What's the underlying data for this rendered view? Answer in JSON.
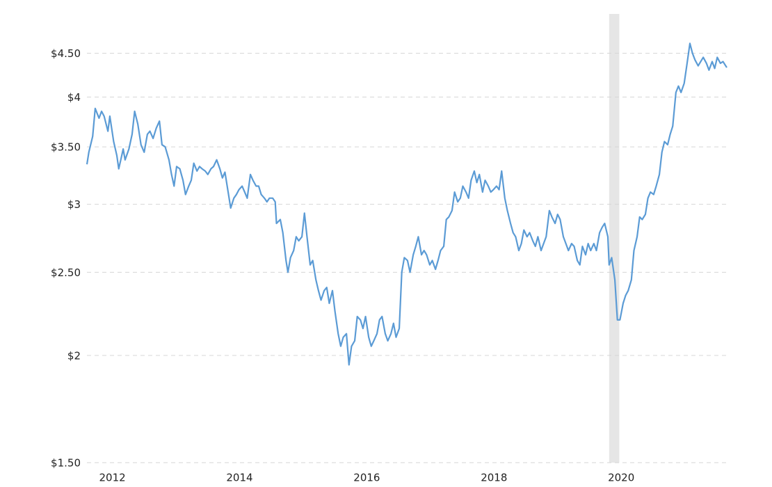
{
  "chart_data": {
    "type": "line",
    "log_scale_y": true,
    "grid": true,
    "xlim": [
      2011.6,
      2021.66
    ],
    "xticks": [
      2012,
      2014,
      2016,
      2018,
      2020
    ],
    "ylim": [
      1.5,
      5.0
    ],
    "yticks": [
      {
        "value": 1.5,
        "label": "$1.50"
      },
      {
        "value": 2,
        "label": "$2"
      },
      {
        "value": 2.5,
        "label": "$2.50"
      },
      {
        "value": 3,
        "label": "$3"
      },
      {
        "value": 3.5,
        "label": "$3.50"
      },
      {
        "value": 4,
        "label": "$4"
      },
      {
        "value": 4.5,
        "label": "$4.50"
      }
    ],
    "shaded_ranges": [
      [
        2019.81,
        2019.97
      ]
    ],
    "shade_color": "#e6e6e6",
    "x": [
      2011.6,
      2011.63,
      2011.69,
      2011.73,
      2011.79,
      2011.83,
      2011.87,
      2011.93,
      2011.96,
      2012.02,
      2012.07,
      2012.1,
      2012.14,
      2012.17,
      2012.2,
      2012.26,
      2012.31,
      2012.35,
      2012.4,
      2012.45,
      2012.5,
      2012.55,
      2012.59,
      2012.64,
      2012.69,
      2012.74,
      2012.78,
      2012.83,
      2012.89,
      2012.93,
      2012.97,
      2013.01,
      2013.06,
      2013.11,
      2013.15,
      2013.2,
      2013.24,
      2013.28,
      2013.33,
      2013.37,
      2013.41,
      2013.46,
      2013.5,
      2013.55,
      2013.59,
      2013.64,
      2013.69,
      2013.73,
      2013.77,
      2013.82,
      2013.86,
      2013.91,
      2013.95,
      2013.99,
      2014.04,
      2014.08,
      2014.12,
      2014.17,
      2014.21,
      2014.26,
      2014.3,
      2014.34,
      2014.39,
      2014.43,
      2014.47,
      2014.52,
      2014.56,
      2014.58,
      2014.64,
      2014.68,
      2014.73,
      2014.76,
      2014.8,
      2014.85,
      2014.89,
      2014.93,
      2014.98,
      2015.02,
      2015.06,
      2015.11,
      2015.15,
      2015.2,
      2015.24,
      2015.28,
      2015.33,
      2015.37,
      2015.41,
      2015.46,
      2015.5,
      2015.55,
      2015.59,
      2015.63,
      2015.68,
      2015.72,
      2015.76,
      2015.81,
      2015.85,
      2015.9,
      2015.94,
      2015.98,
      2016.03,
      2016.07,
      2016.11,
      2016.16,
      2016.2,
      2016.24,
      2016.29,
      2016.33,
      2016.38,
      2016.42,
      2016.46,
      2016.51,
      2016.55,
      2016.59,
      2016.64,
      2016.68,
      2016.73,
      2016.77,
      2016.81,
      2016.86,
      2016.9,
      2016.94,
      2016.99,
      2017.03,
      2017.08,
      2017.12,
      2017.16,
      2017.21,
      2017.25,
      2017.29,
      2017.34,
      2017.38,
      2017.43,
      2017.47,
      2017.51,
      2017.56,
      2017.6,
      2017.64,
      2017.69,
      2017.73,
      2017.77,
      2017.82,
      2017.86,
      2017.91,
      2017.95,
      2017.99,
      2018.04,
      2018.08,
      2018.12,
      2018.17,
      2018.21,
      2018.26,
      2018.3,
      2018.34,
      2018.39,
      2018.43,
      2018.47,
      2018.52,
      2018.56,
      2018.61,
      2018.65,
      2018.69,
      2018.74,
      2018.78,
      2018.82,
      2018.87,
      2018.91,
      2018.96,
      2019.0,
      2019.04,
      2019.09,
      2019.13,
      2019.17,
      2019.22,
      2019.26,
      2019.31,
      2019.35,
      2019.39,
      2019.44,
      2019.48,
      2019.52,
      2019.57,
      2019.61,
      2019.66,
      2019.7,
      2019.74,
      2019.79,
      2019.81,
      2019.85,
      2019.9,
      2019.94,
      2019.98,
      2020.03,
      2020.07,
      2020.11,
      2020.16,
      2020.2,
      2020.25,
      2020.29,
      2020.33,
      2020.38,
      2020.42,
      2020.46,
      2020.51,
      2020.55,
      2020.6,
      2020.64,
      2020.68,
      2020.73,
      2020.77,
      2020.81,
      2020.86,
      2020.9,
      2020.94,
      2020.99,
      2021.03,
      2021.08,
      2021.12,
      2021.16,
      2021.21,
      2021.25,
      2021.29,
      2021.34,
      2021.38,
      2021.43,
      2021.47,
      2021.51,
      2021.56,
      2021.6,
      2021.66
    ],
    "series": [
      {
        "color": "#5b9bd5",
        "values": [
          3.34,
          3.45,
          3.6,
          3.88,
          3.78,
          3.85,
          3.8,
          3.65,
          3.8,
          3.55,
          3.42,
          3.3,
          3.4,
          3.48,
          3.38,
          3.48,
          3.62,
          3.85,
          3.72,
          3.52,
          3.45,
          3.62,
          3.65,
          3.58,
          3.68,
          3.75,
          3.52,
          3.5,
          3.38,
          3.25,
          3.15,
          3.32,
          3.3,
          3.2,
          3.08,
          3.15,
          3.2,
          3.35,
          3.28,
          3.32,
          3.3,
          3.28,
          3.25,
          3.3,
          3.32,
          3.38,
          3.3,
          3.22,
          3.27,
          3.1,
          2.97,
          3.05,
          3.08,
          3.12,
          3.15,
          3.1,
          3.05,
          3.25,
          3.2,
          3.15,
          3.15,
          3.08,
          3.05,
          3.02,
          3.05,
          3.05,
          3.02,
          2.85,
          2.88,
          2.78,
          2.58,
          2.5,
          2.6,
          2.65,
          2.75,
          2.72,
          2.75,
          2.93,
          2.75,
          2.55,
          2.58,
          2.45,
          2.38,
          2.32,
          2.38,
          2.4,
          2.3,
          2.38,
          2.25,
          2.12,
          2.05,
          2.1,
          2.12,
          1.95,
          2.05,
          2.08,
          2.22,
          2.2,
          2.15,
          2.22,
          2.1,
          2.05,
          2.08,
          2.12,
          2.2,
          2.22,
          2.12,
          2.08,
          2.12,
          2.18,
          2.1,
          2.15,
          2.5,
          2.6,
          2.58,
          2.5,
          2.62,
          2.68,
          2.75,
          2.62,
          2.65,
          2.62,
          2.55,
          2.58,
          2.52,
          2.58,
          2.65,
          2.68,
          2.88,
          2.9,
          2.95,
          3.1,
          3.02,
          3.05,
          3.15,
          3.1,
          3.05,
          3.2,
          3.28,
          3.18,
          3.25,
          3.1,
          3.2,
          3.15,
          3.1,
          3.12,
          3.15,
          3.12,
          3.28,
          3.05,
          2.95,
          2.85,
          2.78,
          2.75,
          2.65,
          2.7,
          2.8,
          2.75,
          2.78,
          2.72,
          2.68,
          2.75,
          2.65,
          2.7,
          2.75,
          2.95,
          2.9,
          2.85,
          2.92,
          2.88,
          2.75,
          2.7,
          2.65,
          2.7,
          2.68,
          2.58,
          2.55,
          2.68,
          2.62,
          2.7,
          2.65,
          2.7,
          2.65,
          2.78,
          2.82,
          2.85,
          2.75,
          2.55,
          2.6,
          2.45,
          2.2,
          2.2,
          2.3,
          2.35,
          2.38,
          2.45,
          2.65,
          2.75,
          2.9,
          2.88,
          2.92,
          3.05,
          3.1,
          3.08,
          3.15,
          3.25,
          3.45,
          3.55,
          3.52,
          3.62,
          3.7,
          4.05,
          4.12,
          4.05,
          4.15,
          4.35,
          4.62,
          4.5,
          4.42,
          4.35,
          4.4,
          4.45,
          4.38,
          4.3,
          4.4,
          4.32,
          4.45,
          4.38,
          4.4,
          4.33
        ]
      }
    ]
  }
}
